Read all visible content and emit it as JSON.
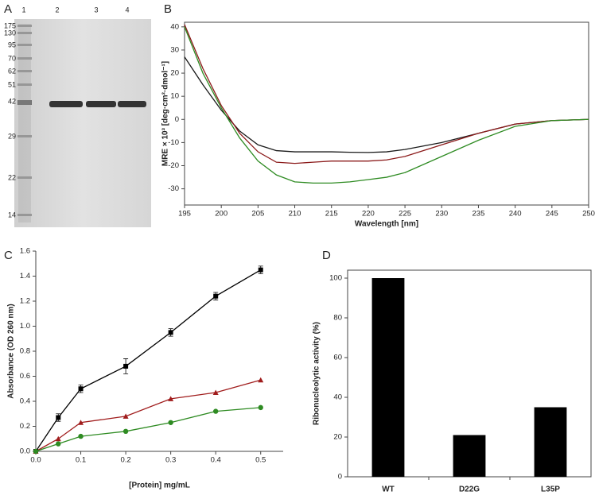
{
  "gel": {
    "panel": "A",
    "lane_labels": [
      "1",
      "2",
      "3",
      "4"
    ],
    "marker_labels": [
      "175",
      "130",
      "95",
      "70",
      "62",
      "51",
      "42",
      "29",
      "22",
      "14"
    ]
  },
  "chart_data": [
    {
      "type": "line",
      "panel": "B",
      "x_label": "Wavelength [nm]",
      "y_label": "MRE × 10³ [deg·cm²·dmol⁻¹]",
      "x": [
        195,
        197.5,
        200,
        202.5,
        205,
        207.5,
        210,
        212.5,
        215,
        217.5,
        220,
        222.5,
        225,
        230,
        235,
        240,
        245,
        250
      ],
      "series": [
        {
          "color": "#1a1a1a",
          "values": [
            27,
            15,
            4,
            -5,
            -11,
            -13.5,
            -14,
            -14,
            -14,
            -14.2,
            -14.3,
            -14,
            -13,
            -10,
            -6,
            -2,
            -0.5,
            0
          ]
        },
        {
          "color": "#8b1a1a",
          "values": [
            41,
            22,
            6,
            -6,
            -14,
            -18.5,
            -19,
            -18.5,
            -18,
            -18,
            -18,
            -17.5,
            -16,
            -11,
            -6,
            -2,
            -0.5,
            0
          ]
        },
        {
          "color": "#2e8b22",
          "values": [
            40,
            20,
            5,
            -8,
            -18,
            -24,
            -27,
            -27.5,
            -27.5,
            -27,
            -26,
            -25,
            -23,
            -16,
            -9,
            -3,
            -0.5,
            0
          ]
        }
      ],
      "xlim": [
        195,
        250
      ],
      "xticks": [
        195,
        200,
        205,
        210,
        215,
        220,
        225,
        230,
        235,
        240,
        245,
        250
      ],
      "ylim": [
        -37,
        42
      ],
      "yticks": [
        -30,
        -20,
        -10,
        0,
        10,
        20,
        30,
        40
      ],
      "frame": true
    },
    {
      "type": "line",
      "panel": "C",
      "x_label": "[Protein] mg/mL",
      "y_label": "Absorbance (OD 260 nm)",
      "x": [
        0,
        0.05,
        0.1,
        0.2,
        0.3,
        0.4,
        0.5
      ],
      "series": [
        {
          "color": "#000000",
          "marker": "square",
          "values": [
            0,
            0.27,
            0.5,
            0.68,
            0.95,
            1.24,
            1.45
          ],
          "errors": [
            0,
            0.03,
            0.03,
            0.06,
            0.03,
            0.03,
            0.03
          ]
        },
        {
          "color": "#a01c1c",
          "marker": "triangle",
          "values": [
            0,
            0.1,
            0.23,
            0.28,
            0.42,
            0.47,
            0.57
          ]
        },
        {
          "color": "#2e8b22",
          "marker": "circle",
          "values": [
            0,
            0.06,
            0.12,
            0.16,
            0.23,
            0.32,
            0.35
          ]
        }
      ],
      "xlim": [
        0,
        0.55
      ],
      "xticks": [
        {
          "value": 0,
          "label": "0.0"
        },
        0.1,
        0.2,
        0.3,
        0.4,
        0.5
      ],
      "ylim": [
        0,
        1.6
      ],
      "yticks": [
        {
          "value": 0,
          "label": "0.0"
        },
        0.2,
        0.4,
        0.6,
        0.8,
        {
          "value": 1,
          "label": "1.0"
        },
        1.2,
        1.4,
        1.6
      ],
      "frame": false
    },
    {
      "type": "bar",
      "panel": "D",
      "y_label": "Ribonucleolytic activity (%)",
      "categories": [
        "WT",
        "D22G",
        "L35P"
      ],
      "values": [
        100,
        21,
        35
      ],
      "color": "#000000",
      "ylim": [
        0,
        104
      ],
      "yticks": [
        0,
        20,
        40,
        60,
        80,
        100
      ],
      "frame": true
    }
  ]
}
